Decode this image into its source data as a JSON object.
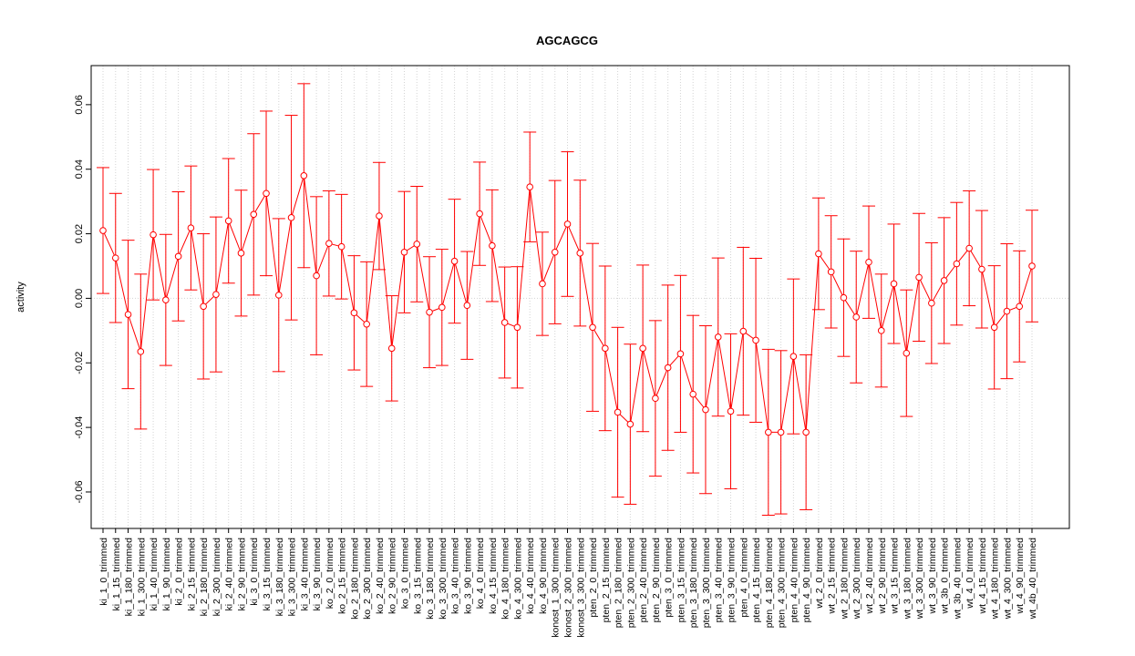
{
  "chart_data": {
    "type": "errorbar",
    "title": "AGCAGCG",
    "y_label": "activity",
    "color": "#ff0000",
    "categories": [
      "ki_1_0_trimmed",
      "ki_1_15_trimmed",
      "ki_1_180_trimmed",
      "ki_1_300_trimmed",
      "ki_1_40_trimmed",
      "ki_1_90_trimmed",
      "ki_2_0_trimmed",
      "ki_2_15_trimmed",
      "ki_2_180_trimmed",
      "ki_2_300_trimmed",
      "ki_2_40_trimmed",
      "ki_2_90_trimmed",
      "ki_3_0_trimmed",
      "ki_3_15_trimmed",
      "ki_3_180_trimmed",
      "ki_3_300_trimmed",
      "ki_3_40_trimmed",
      "ki_3_90_trimmed",
      "ko_2_0_trimmed",
      "ko_2_15_trimmed",
      "ko_2_180_trimmed",
      "ko_2_300_trimmed",
      "ko_2_40_trimmed",
      "ko_2_90_trimmed",
      "ko_3_0_trimmed",
      "ko_3_15_trimmed",
      "ko_3_180_trimmed",
      "ko_3_300_trimmed",
      "ko_3_40_trimmed",
      "ko_3_90_trimmed",
      "ko_4_0_trimmed",
      "ko_4_15_trimmed",
      "ko_4_180_trimmed",
      "ko_4_300_trimmed",
      "ko_4_40_trimmed",
      "ko_4_90_trimmed",
      "konost_1_300_trimmed",
      "konost_2_300_trimmed",
      "konost_3_300_trimmed",
      "pten_2_0_trimmed",
      "pten_2_15_trimmed",
      "pten_2_180_trimmed",
      "pten_2_300_trimmed",
      "pten_2_40_trimmed",
      "pten_2_90_trimmed",
      "pten_3_0_trimmed",
      "pten_3_15_trimmed",
      "pten_3_180_trimmed",
      "pten_3_300_trimmed",
      "pten_3_40_trimmed",
      "pten_3_90_trimmed",
      "pten_4_0_trimmed",
      "pten_4_15_trimmed",
      "pten_4_180_trimmed",
      "pten_4_300_trimmed",
      "pten_4_40_trimmed",
      "pten_4_90_trimmed",
      "wt_2_0_trimmed",
      "wt_2_15_trimmed",
      "wt_2_180_trimmed",
      "wt_2_300_trimmed",
      "wt_2_40_trimmed",
      "wt_2_90_trimmed",
      "wt_3_15_trimmed",
      "wt_3_180_trimmed",
      "wt_3_300_trimmed",
      "wt_3_90_trimmed",
      "wt_3b_0_trimmed",
      "wt_3b_40_trimmed",
      "wt_4_0_trimmed",
      "wt_4_15_trimmed",
      "wt_4_180_trimmed",
      "wt_4_300_trimmed",
      "wt_4_90_trimmed",
      "wt_4b_40_trimmed"
    ],
    "values": [
      0.021,
      0.0125,
      -0.005,
      -0.0165,
      0.0197,
      -0.0005,
      0.013,
      0.0218,
      -0.0025,
      0.0012,
      0.024,
      0.014,
      0.026,
      0.0325,
      0.001,
      0.025,
      0.038,
      0.007,
      0.017,
      0.016,
      -0.0045,
      -0.008,
      0.0255,
      -0.0155,
      0.0143,
      0.0168,
      -0.0043,
      -0.0028,
      0.0115,
      -0.0022,
      0.0262,
      0.0163,
      -0.0075,
      -0.009,
      0.0345,
      0.0045,
      0.0143,
      0.023,
      0.014,
      -0.009,
      -0.0155,
      -0.0353,
      -0.039,
      -0.0155,
      -0.031,
      -0.0215,
      -0.0172,
      -0.0297,
      -0.0345,
      -0.012,
      -0.035,
      -0.0102,
      -0.013,
      -0.0415,
      -0.0415,
      -0.018,
      -0.0415,
      0.0138,
      0.0082,
      0.0002,
      -0.0058,
      0.0112,
      -0.01,
      0.0045,
      -0.017,
      0.0065,
      -0.0015,
      0.0055,
      0.0107,
      0.0155,
      0.009,
      -0.009,
      -0.004,
      -0.0025,
      0.01
    ],
    "errors": [
      0.0195,
      0.02,
      0.023,
      0.024,
      0.0202,
      0.0203,
      0.02,
      0.0192,
      0.0225,
      0.024,
      0.0193,
      0.0195,
      0.025,
      0.0255,
      0.0237,
      0.0317,
      0.0285,
      0.0245,
      0.0163,
      0.0162,
      0.0177,
      0.0193,
      0.0166,
      0.0163,
      0.0188,
      0.0179,
      0.0172,
      0.018,
      0.0192,
      0.0167,
      0.016,
      0.0173,
      0.0172,
      0.0188,
      0.017,
      0.016,
      0.0222,
      0.0224,
      0.0226,
      0.026,
      0.0255,
      0.0263,
      0.0248,
      0.0258,
      0.0241,
      0.0256,
      0.0243,
      0.0244,
      0.026,
      0.0245,
      0.024,
      0.026,
      0.0254,
      0.0257,
      0.0253,
      0.024,
      0.024,
      0.0173,
      0.0174,
      0.0182,
      0.0204,
      0.0174,
      0.0175,
      0.0185,
      0.0196,
      0.0198,
      0.0187,
      0.0195,
      0.019,
      0.0178,
      0.0182,
      0.0191,
      0.0209,
      0.0172,
      0.0173
    ],
    "ylim": [
      -0.0713,
      0.0721
    ],
    "yticks": [
      -0.06,
      -0.04,
      -0.02,
      {
        "value": 0,
        "label": "0.00"
      },
      0.02,
      0.04,
      0.06
    ],
    "hline": 0,
    "grid": true
  }
}
